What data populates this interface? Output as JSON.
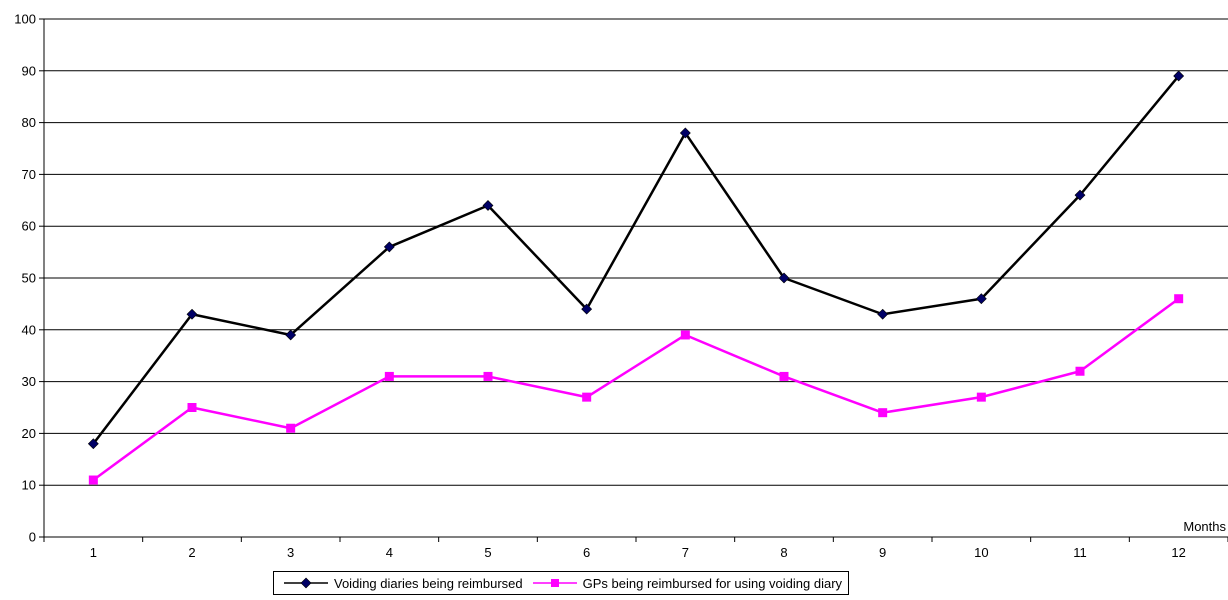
{
  "chart_data": {
    "type": "line",
    "x": [
      1,
      2,
      3,
      4,
      5,
      6,
      7,
      8,
      9,
      10,
      11,
      12
    ],
    "series": [
      {
        "name": "Voiding diaries being reimbursed",
        "values": [
          18,
          43,
          39,
          56,
          64,
          44,
          78,
          50,
          43,
          46,
          66,
          89
        ],
        "color": "#000000",
        "marker": "diamond",
        "marker_color": "#000066"
      },
      {
        "name": "GPs being reimbursed for using voiding diary",
        "values": [
          11,
          25,
          21,
          31,
          31,
          27,
          39,
          31,
          24,
          27,
          32,
          46
        ],
        "color": "#ff00ff",
        "marker": "square",
        "marker_color": "#ff00ff"
      }
    ],
    "xlabel": "Months",
    "ylabel": "",
    "ylim": [
      0,
      100
    ],
    "yticks": [
      0,
      10,
      20,
      30,
      40,
      50,
      60,
      70,
      80,
      90,
      100
    ],
    "grid": true,
    "legend_position": "bottom"
  }
}
